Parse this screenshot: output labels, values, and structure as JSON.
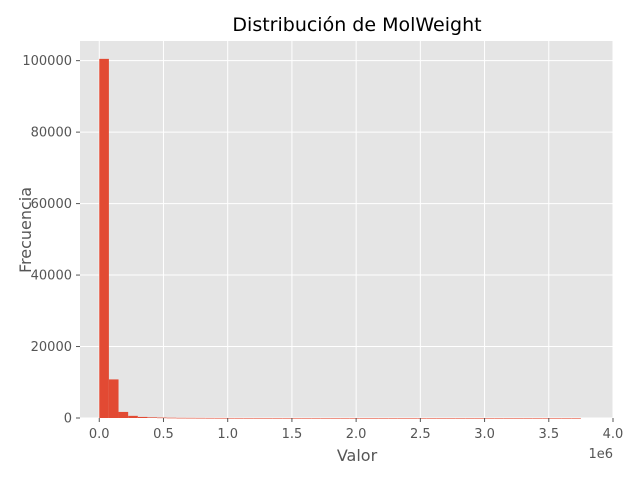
{
  "chart_data": {
    "type": "bar",
    "title": "Distribución de MolWeight",
    "xlabel": "Valor",
    "ylabel": "Frecuencia",
    "x_offset_label": "1e6",
    "x_scale": 1000000,
    "xlim": [
      -150000,
      4000000
    ],
    "ylim": [
      0,
      105500
    ],
    "xticks": [
      0,
      500000,
      1000000,
      1500000,
      2000000,
      2500000,
      3000000,
      3500000,
      4000000
    ],
    "xtick_labels": [
      "0.0",
      "0.5",
      "1.0",
      "1.5",
      "2.0",
      "2.5",
      "3.0",
      "3.5",
      "4.0"
    ],
    "yticks": [
      0,
      20000,
      40000,
      60000,
      80000,
      100000
    ],
    "ytick_labels": [
      "0",
      "20000",
      "40000",
      "60000",
      "80000",
      "100000"
    ],
    "bin_width": 75000,
    "bin_start": 0,
    "values": [
      100500,
      10800,
      1700,
      600,
      300,
      180,
      120,
      80,
      50,
      40,
      30,
      20,
      15,
      10,
      8,
      6,
      5,
      4,
      3,
      3,
      2,
      2,
      2,
      1,
      1,
      1,
      1,
      1,
      1,
      1,
      1,
      1,
      1,
      1,
      1,
      1,
      1,
      1,
      1,
      1,
      1,
      1,
      1,
      1,
      1,
      1,
      1,
      1,
      1,
      1
    ],
    "grid": true,
    "legend": "none",
    "colors": {
      "bar": "#E24A33",
      "plot_background": "#E5E5E5",
      "grid": "#FFFFFF",
      "text": "#555555"
    }
  }
}
